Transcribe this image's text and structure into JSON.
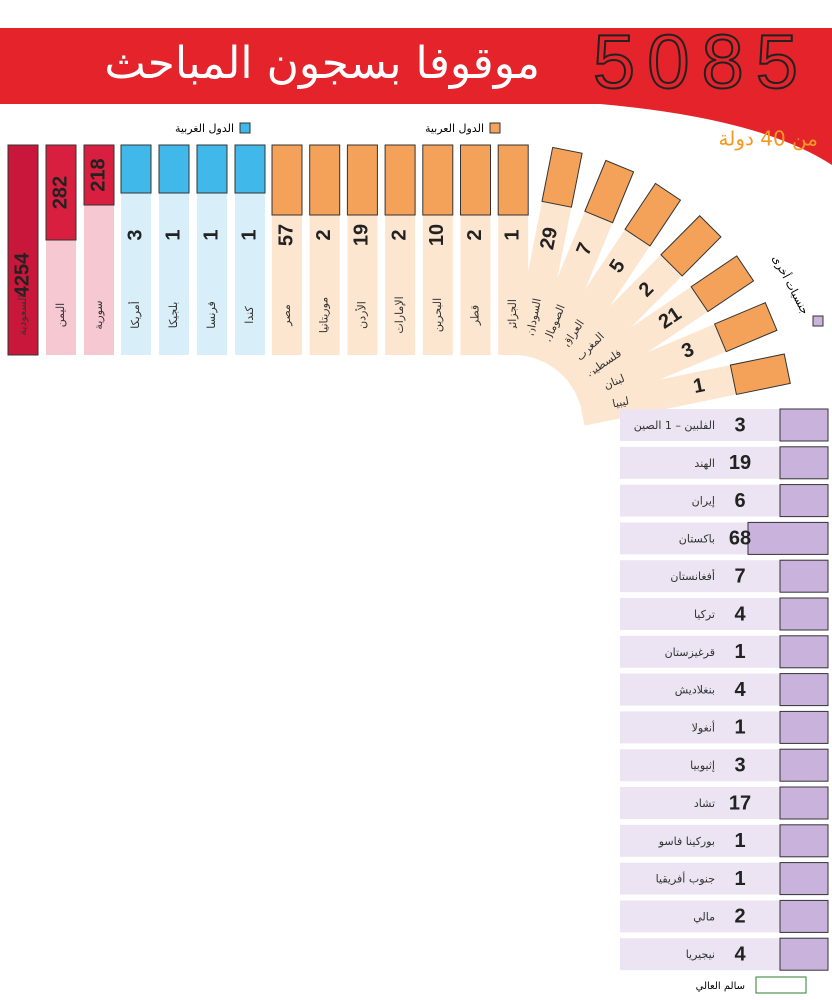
{
  "header": {
    "total": "5085",
    "title": "موقوفا بسجون المباحث",
    "subtitle": "من 40 دولة"
  },
  "legend": {
    "arab": "الدول العربية",
    "western": "الدول الغربية",
    "other": "جنسيات أخرى"
  },
  "red_group": [
    {
      "name": "السعودية",
      "value": 4254
    },
    {
      "name": "اليمن",
      "value": 282
    },
    {
      "name": "سورية",
      "value": 218
    }
  ],
  "western": [
    {
      "name": "أمريكا",
      "value": 3
    },
    {
      "name": "بلجيكا",
      "value": 1
    },
    {
      "name": "فرنسا",
      "value": 1
    },
    {
      "name": "كندا",
      "value": 1
    }
  ],
  "arab": [
    {
      "name": "مصر",
      "value": 57
    },
    {
      "name": "موريتانيا",
      "value": 2
    },
    {
      "name": "الأردن",
      "value": 19
    },
    {
      "name": "الإمارات",
      "value": 2
    },
    {
      "name": "البحرين",
      "value": 10
    },
    {
      "name": "قطر",
      "value": 2
    },
    {
      "name": "الجزائر",
      "value": 1
    },
    {
      "name": "السودان",
      "value": 29
    },
    {
      "name": "الصومال",
      "value": 7
    },
    {
      "name": "العراق",
      "value": 5
    },
    {
      "name": "المغرب",
      "value": 2
    },
    {
      "name": "فلسطين",
      "value": 21
    },
    {
      "name": "لبنان",
      "value": 3
    },
    {
      "name": "ليبيا",
      "value": 1
    }
  ],
  "other": [
    {
      "name": "الفلبين – 1 الصين",
      "value": 3
    },
    {
      "name": "الهند",
      "value": 19
    },
    {
      "name": "إيران",
      "value": 6
    },
    {
      "name": "باكستان",
      "value": 68
    },
    {
      "name": "أفغانستان",
      "value": 7
    },
    {
      "name": "تركيا",
      "value": 4
    },
    {
      "name": "قرغيزستان",
      "value": 1
    },
    {
      "name": "بنغلاديش",
      "value": 4
    },
    {
      "name": "أنغولا",
      "value": 1
    },
    {
      "name": "إثيوبيا",
      "value": 3
    },
    {
      "name": "تشاد",
      "value": 17
    },
    {
      "name": "بوركينا فاسو",
      "value": 1
    },
    {
      "name": "جنوب أفريقيا",
      "value": 1
    },
    {
      "name": "مالي",
      "value": 2
    },
    {
      "name": "نيجيريا",
      "value": 4
    }
  ],
  "credit": "سالم العالي"
}
